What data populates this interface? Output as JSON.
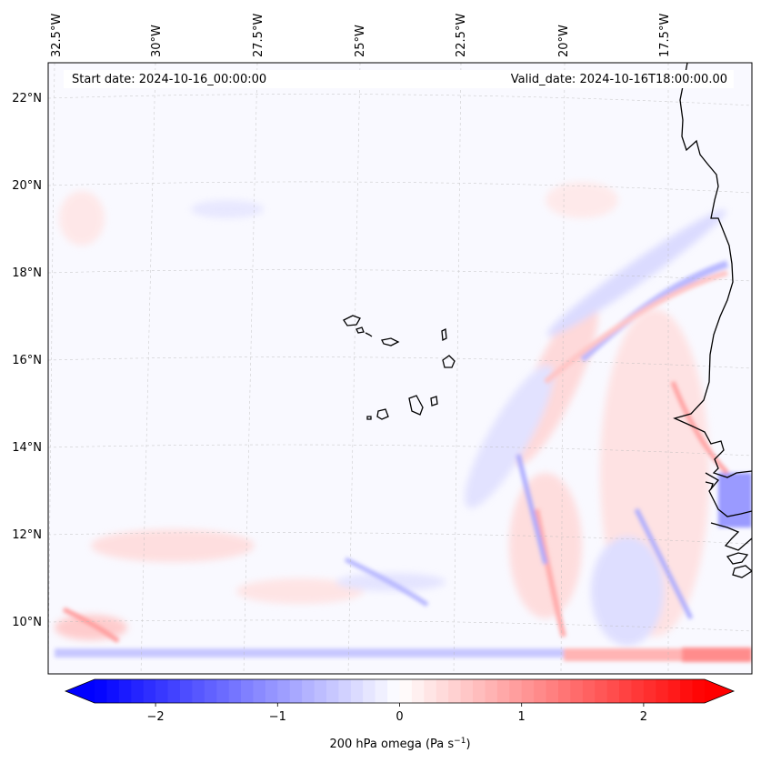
{
  "header": {
    "start_date": "Start date: 2024-10-16_00:00:00",
    "valid_date": "Valid_date: 2024-10-16T18:00:00.00"
  },
  "map": {
    "variable": "200 hPa omega",
    "lon_labels": [
      "32.5°W",
      "30°W",
      "27.5°W",
      "25°W",
      "22.5°W",
      "20°W",
      "17.5°W"
    ],
    "lat_labels": [
      "22°N",
      "20°N",
      "18°N",
      "16°N",
      "14°N",
      "12°N",
      "10°N"
    ],
    "gridlines": "dashed",
    "land": "coastline outline only (West African coast and Cape Verde islands)"
  },
  "colorbar": {
    "label": "200 hPa omega (Pa s",
    "label_exp": "−1",
    "label_close": ")",
    "cmap": "bwr",
    "extend": "both",
    "vmin": -2.5,
    "vmax": 2.5,
    "ticks": [
      {
        "value": -2,
        "label": "−2"
      },
      {
        "value": -1,
        "label": "−1"
      },
      {
        "value": 0,
        "label": "0"
      },
      {
        "value": 1,
        "label": "1"
      },
      {
        "value": 2,
        "label": "2"
      }
    ],
    "colors": {
      "min": "#0000ff",
      "mid": "#ffffff",
      "max": "#ff0000"
    }
  }
}
